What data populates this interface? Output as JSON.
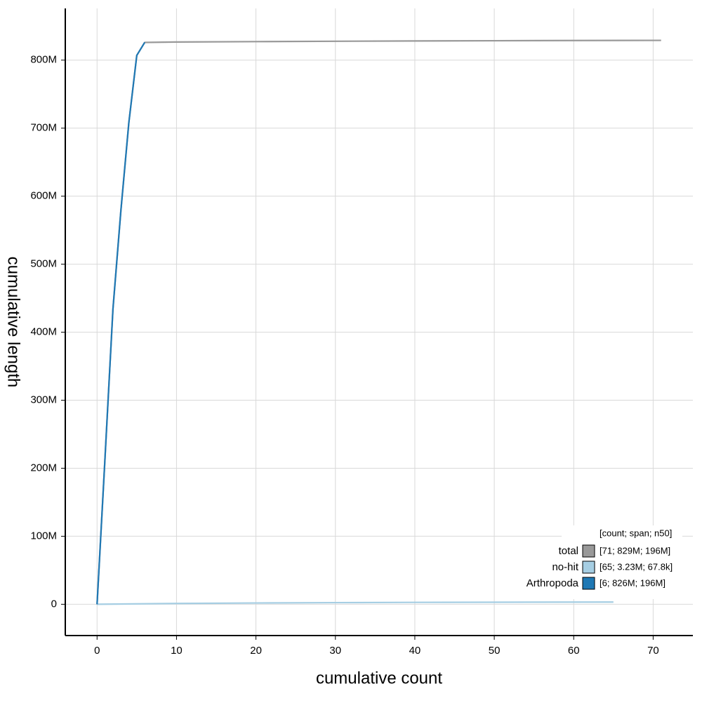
{
  "chart_data": {
    "type": "line",
    "x_label": "cumulative count",
    "y_label": "cumulative length",
    "xlim": [
      -4,
      75
    ],
    "xticks": [
      0,
      10,
      20,
      30,
      40,
      50,
      60,
      70
    ],
    "ylim": [
      -46000000,
      876000000
    ],
    "yticks": [
      {
        "value": 0,
        "label": "0"
      },
      {
        "value": 100000000,
        "label": "100M"
      },
      {
        "value": 200000000,
        "label": "200M"
      },
      {
        "value": 300000000,
        "label": "300M"
      },
      {
        "value": 400000000,
        "label": "400M"
      },
      {
        "value": 500000000,
        "label": "500M"
      },
      {
        "value": 600000000,
        "label": "600M"
      },
      {
        "value": 700000000,
        "label": "700M"
      },
      {
        "value": 800000000,
        "label": "800M"
      }
    ],
    "grid": true,
    "legend": "lower right",
    "legend_title": "[count; span; n50]",
    "series": [
      {
        "name": "total",
        "color": "#999999",
        "legend_label": "[71; 829M; 196M]",
        "x": [
          0,
          1,
          2,
          3,
          4,
          5,
          6,
          10,
          20,
          30,
          40,
          50,
          60,
          71
        ],
        "values": [
          0,
          215000000,
          434000000,
          579000000,
          708000000,
          807000000,
          826000000,
          826600000,
          827200000,
          827700000,
          828200000,
          828500000,
          828800000,
          829000000
        ]
      },
      {
        "name": "no-hit",
        "color": "#a6cee3",
        "legend_label": "[65; 3.23M; 67.8k]",
        "x": [
          0,
          10,
          20,
          30,
          40,
          50,
          65
        ],
        "values": [
          0,
          1200000,
          1900000,
          2400000,
          2800000,
          3000000,
          3230000
        ]
      },
      {
        "name": "Arthropoda",
        "color": "#1f78b4",
        "legend_label": "[6; 826M; 196M]",
        "x": [
          0,
          1,
          2,
          3,
          4,
          5,
          6
        ],
        "values": [
          0,
          215000000,
          434000000,
          579000000,
          708000000,
          807000000,
          826000000
        ]
      }
    ]
  }
}
